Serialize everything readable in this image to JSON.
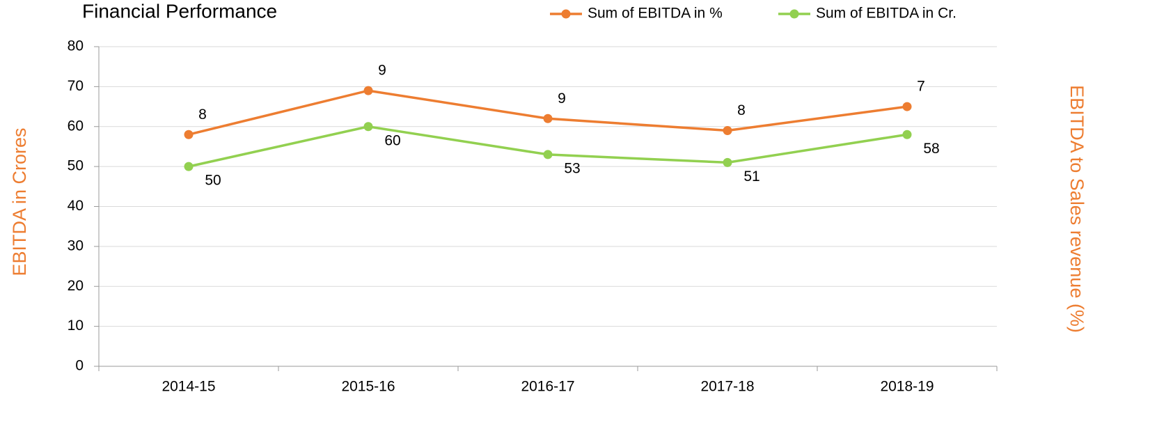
{
  "chart_data": {
    "type": "line",
    "title": "Financial Performance",
    "y_label": "EBITDA in Crores",
    "y2_label": "EBITDA to Sales revenue (%)",
    "categories": [
      "2014-15",
      "2015-16",
      "2016-17",
      "2017-18",
      "2018-19"
    ],
    "series": [
      {
        "name": "Sum of EBITDA in %",
        "color": "#ed7d31",
        "values": [
          58,
          69,
          62,
          59,
          65
        ],
        "point_labels": [
          "8",
          "9",
          "9",
          "8",
          "7"
        ]
      },
      {
        "name": "Sum of EBITDA in Cr.",
        "color": "#92d050",
        "values": [
          50,
          60,
          53,
          51,
          58
        ]
      }
    ],
    "ylim": [
      0,
      80
    ],
    "yticks": [
      0,
      10,
      20,
      30,
      40,
      50,
      60,
      70,
      80
    ],
    "grid": true,
    "legend": "top-right"
  }
}
